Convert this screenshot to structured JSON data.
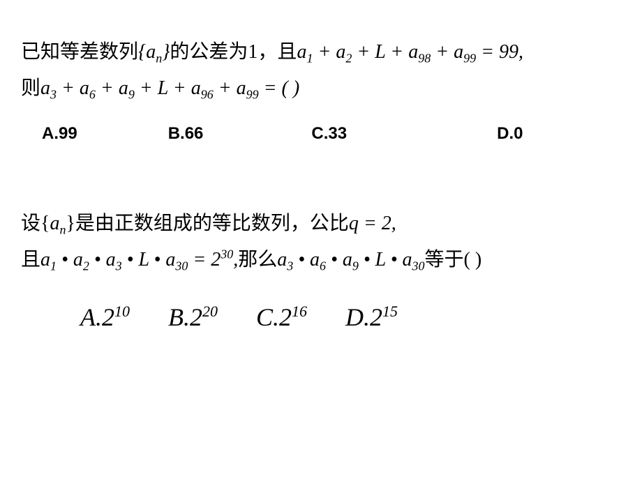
{
  "problem1": {
    "line1_prefix": "已知等差数列",
    "line1_brace": "{a",
    "line1_sub": "n",
    "line1_brace_close": "}",
    "line1_mid": "的公差为1，且",
    "line1_a1": "a",
    "line1_sub1": "1",
    "line1_plus": " + ",
    "line1_a2": "a",
    "line1_sub2": "2",
    "line1_L": " + L  + ",
    "line1_a98": "a",
    "line1_sub98": "98",
    "line1_a99": "a",
    "line1_sub99": "99",
    "line1_eq": " = 99,",
    "line2_prefix": "则",
    "line2_a3": "a",
    "line2_sub3": "3",
    "line2_a6": "a",
    "line2_sub6": "6",
    "line2_a9": "a",
    "line2_sub9": "9",
    "line2_L": " + L  + ",
    "line2_a96": "a",
    "line2_sub96": "96",
    "line2_a99": "a",
    "line2_sub99": "99",
    "line2_end": " = (  )",
    "options": {
      "a": "A.99",
      "b": "B.66",
      "c": "C.33",
      "d": "D.0"
    }
  },
  "problem2": {
    "line1_prefix": "设{",
    "line1_a": "a",
    "line1_sub": "n",
    "line1_mid": "}是由正数组成的等比数列，公比",
    "line1_q": "q",
    "line1_eq": " = 2,",
    "line2_prefix": "且",
    "line2_a1": "a",
    "line2_sub1": "1",
    "line2_dot": " • ",
    "line2_a2": "a",
    "line2_sub2": "2",
    "line2_a3": "a",
    "line2_sub3": "3",
    "line2_L": " • L  • ",
    "line2_a30": "a",
    "line2_sub30": "30",
    "line2_eq": " = 2",
    "line2_exp": "30",
    "line2_comma": ",",
    "line2_mid": "那么",
    "line2_b3": "a",
    "line2_bsub3": "3",
    "line2_b6": "a",
    "line2_bsub6": "6",
    "line2_b9": "a",
    "line2_bsub9": "9",
    "line2_b30": "a",
    "line2_bsub30": "30",
    "line2_end": "等于(  )",
    "options": {
      "a_label": "A.",
      "a_base": "2",
      "a_exp": "10",
      "b_label": "B.",
      "b_base": "2",
      "b_exp": "20",
      "c_label": "C.",
      "c_base": "2",
      "c_exp": "16",
      "d_label": "D.",
      "d_base": "2",
      "d_exp": "15"
    }
  }
}
